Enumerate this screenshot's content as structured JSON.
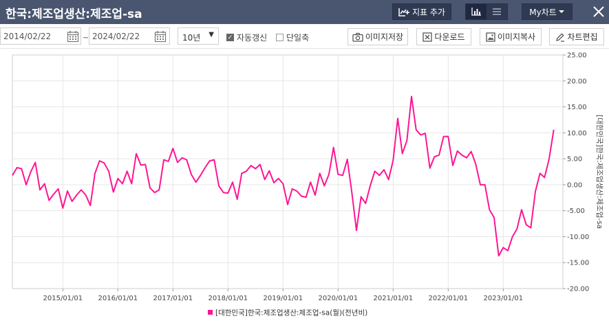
{
  "window": {
    "title": "한국:제조업생산:제조업-sa",
    "add_indicator_label": "지표 추가",
    "my_chart_label": "My차트",
    "view_icons": [
      "bar-chart-icon",
      "list-icon"
    ]
  },
  "toolbar": {
    "start_date": "2014/02/22",
    "separator": "~",
    "end_date": "2024/02/22",
    "period": "10년",
    "auto_refresh_label": "자동갱신",
    "auto_refresh_checked": true,
    "single_axis_label": "단일축",
    "single_axis_checked": false,
    "save_image_label": "이미지저장",
    "download_label": "다운로드",
    "copy_image_label": "이미지복사",
    "edit_chart_label": "차트편집"
  },
  "colors": {
    "titlebar": "#4a5670",
    "series": "#ff1493",
    "grid": "#e6e6e6"
  },
  "chart_data": {
    "type": "line",
    "x_tick_labels": [
      "2015/01/01",
      "2016/01/01",
      "2017/01/01",
      "2018/01/01",
      "2019/01/01",
      "2020/01/01",
      "2021/01/01",
      "2022/01/01",
      "2023/01/01"
    ],
    "y_tick_labels": [
      "25.00",
      "20.00",
      "15.00",
      "10.00",
      "5.00",
      "0.00",
      "-5.00",
      "-10.00",
      "-15.00",
      "-20.00"
    ],
    "ylim": [
      -20,
      25
    ],
    "xlim": [
      "2014-02",
      "2024-02"
    ],
    "y_axis_label": "[대한민국]한국:제조업생산:제조업-sa",
    "y_axis_position": "right",
    "grid": true,
    "legend_position": "bottom",
    "series": [
      {
        "name": "[대한민국]한국:제조업생산:제조업-sa(월)(전년비)",
        "frequency": "monthly",
        "start": "2014-02",
        "values": [
          1.8,
          3.3,
          3.1,
          0.0,
          2.5,
          4.3,
          -1.0,
          0.2,
          -3.0,
          -1.8,
          -0.8,
          -4.5,
          -1.2,
          -3.2,
          -2.0,
          -1.0,
          -2.0,
          -4.0,
          2.2,
          4.6,
          4.2,
          2.6,
          -1.4,
          1.2,
          0.2,
          2.6,
          0.2,
          6.0,
          3.8,
          3.9,
          -0.6,
          -1.5,
          -1.0,
          4.8,
          4.5,
          7.0,
          4.3,
          5.2,
          4.8,
          2.0,
          0.5,
          1.8,
          3.3,
          4.6,
          4.8,
          -0.2,
          -1.5,
          -1.6,
          0.5,
          -2.8,
          2.2,
          2.6,
          3.7,
          3.1,
          3.9,
          1.0,
          2.7,
          0.4,
          1.2,
          0.2,
          -3.8,
          -0.8,
          -1.2,
          -2.2,
          -2.4,
          0.5,
          -2.0,
          2.2,
          -0.2,
          2.0,
          7.2,
          2.0,
          1.8,
          4.9,
          -1.5,
          -8.8,
          -2.3,
          -3.6,
          -0.2,
          2.6,
          1.8,
          2.9,
          1.0,
          4.7,
          12.8,
          6.0,
          8.5,
          17.0,
          10.6,
          9.6,
          9.9,
          3.2,
          5.4,
          5.7,
          9.3,
          9.3,
          3.7,
          6.5,
          5.7,
          5.2,
          6.4,
          4.0,
          0.0,
          0.0,
          -4.8,
          -6.3,
          -13.7,
          -12.1,
          -12.7,
          -10.0,
          -8.5,
          -4.8,
          -7.7,
          -8.3,
          -1.3,
          2.2,
          1.4,
          5.0,
          10.6
        ]
      }
    ]
  }
}
